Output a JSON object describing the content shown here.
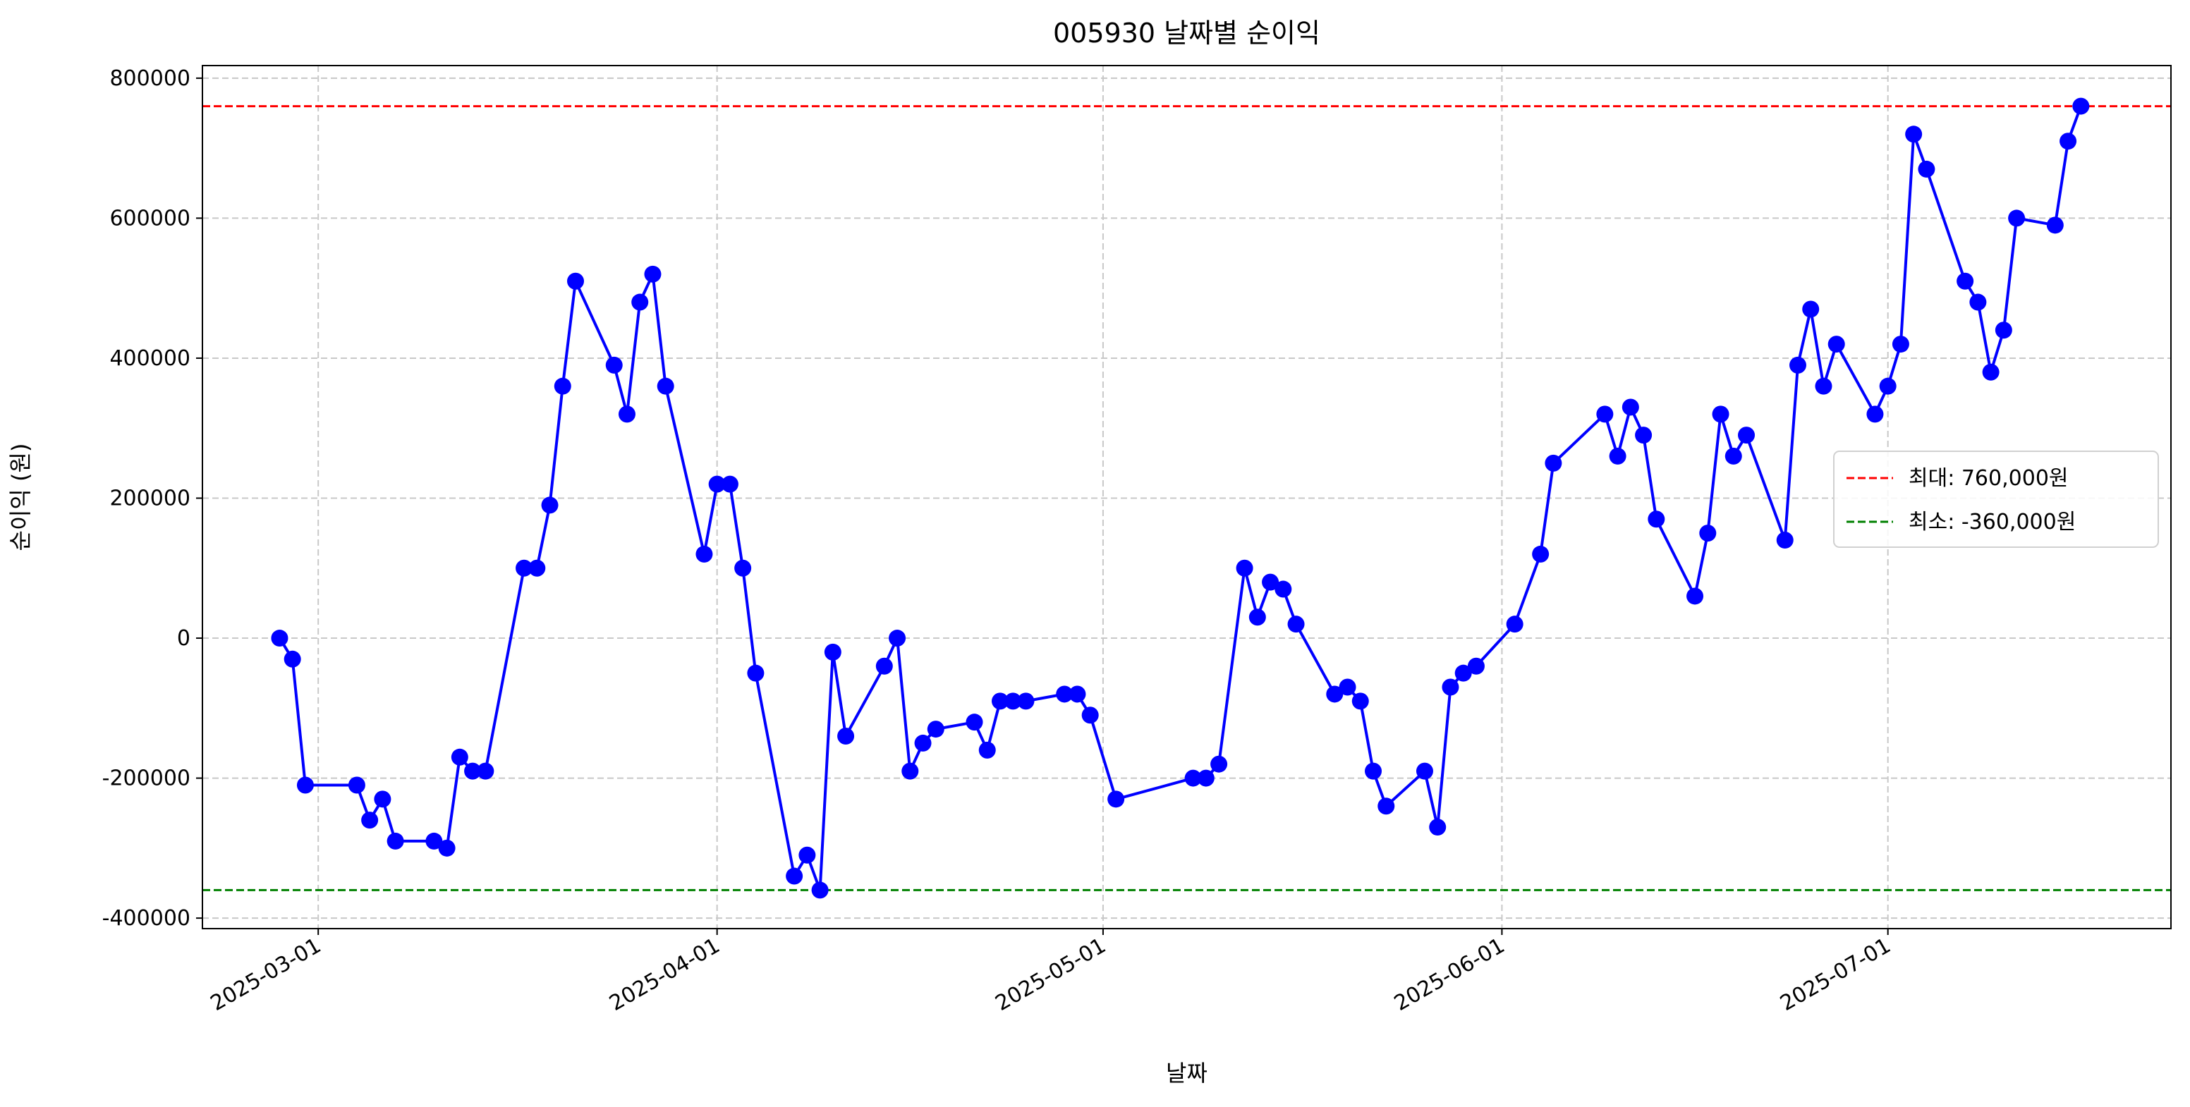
{
  "chart_data": {
    "type": "line",
    "title": "005930 날짜별 순이익",
    "xlabel": "날짜",
    "ylabel": "순이익 (원)",
    "x_ticks": [
      "2025-03-01",
      "2025-04-01",
      "2025-05-01",
      "2025-06-01",
      "2025-07-01"
    ],
    "y_ticks": [
      800000,
      600000,
      400000,
      200000,
      0,
      -200000,
      -400000
    ],
    "xlim": [
      "2025-02-20",
      "2025-07-23"
    ],
    "ylim": [
      -415000,
      818000
    ],
    "grid": true,
    "legend_position": "center-right",
    "colors": {
      "series": "#0000ff",
      "max_line": "#ff0000",
      "min_line": "#008000",
      "grid": "#c8c8c8"
    },
    "reference_lines": [
      {
        "name": "최대: 760,000원",
        "value": 760000,
        "color": "#ff0000",
        "style": "dashed"
      },
      {
        "name": "최소: -360,000원",
        "value": -360000,
        "color": "#008000",
        "style": "dashed"
      }
    ],
    "series": [
      {
        "color": "#0000ff",
        "marker": "circle",
        "points": [
          {
            "x": "2025-02-26",
            "y": 0
          },
          {
            "x": "2025-02-27",
            "y": -30000
          },
          {
            "x": "2025-02-28",
            "y": -210000
          },
          {
            "x": "2025-03-04",
            "y": -210000
          },
          {
            "x": "2025-03-05",
            "y": -260000
          },
          {
            "x": "2025-03-06",
            "y": -230000
          },
          {
            "x": "2025-03-07",
            "y": -290000
          },
          {
            "x": "2025-03-10",
            "y": -290000
          },
          {
            "x": "2025-03-11",
            "y": -300000
          },
          {
            "x": "2025-03-12",
            "y": -170000
          },
          {
            "x": "2025-03-13",
            "y": -190000
          },
          {
            "x": "2025-03-14",
            "y": -190000
          },
          {
            "x": "2025-03-17",
            "y": 100000
          },
          {
            "x": "2025-03-18",
            "y": 100000
          },
          {
            "x": "2025-03-19",
            "y": 190000
          },
          {
            "x": "2025-03-20",
            "y": 360000
          },
          {
            "x": "2025-03-21",
            "y": 510000
          },
          {
            "x": "2025-03-24",
            "y": 390000
          },
          {
            "x": "2025-03-25",
            "y": 320000
          },
          {
            "x": "2025-03-26",
            "y": 480000
          },
          {
            "x": "2025-03-27",
            "y": 520000
          },
          {
            "x": "2025-03-28",
            "y": 360000
          },
          {
            "x": "2025-03-31",
            "y": 120000
          },
          {
            "x": "2025-04-01",
            "y": 220000
          },
          {
            "x": "2025-04-02",
            "y": 220000
          },
          {
            "x": "2025-04-03",
            "y": 100000
          },
          {
            "x": "2025-04-04",
            "y": -50000
          },
          {
            "x": "2025-04-07",
            "y": -340000
          },
          {
            "x": "2025-04-08",
            "y": -310000
          },
          {
            "x": "2025-04-09",
            "y": -360000
          },
          {
            "x": "2025-04-10",
            "y": -20000
          },
          {
            "x": "2025-04-11",
            "y": -140000
          },
          {
            "x": "2025-04-14",
            "y": -40000
          },
          {
            "x": "2025-04-15",
            "y": 0
          },
          {
            "x": "2025-04-16",
            "y": -190000
          },
          {
            "x": "2025-04-17",
            "y": -150000
          },
          {
            "x": "2025-04-18",
            "y": -130000
          },
          {
            "x": "2025-04-21",
            "y": -120000
          },
          {
            "x": "2025-04-22",
            "y": -160000
          },
          {
            "x": "2025-04-23",
            "y": -90000
          },
          {
            "x": "2025-04-24",
            "y": -90000
          },
          {
            "x": "2025-04-25",
            "y": -90000
          },
          {
            "x": "2025-04-28",
            "y": -80000
          },
          {
            "x": "2025-04-29",
            "y": -80000
          },
          {
            "x": "2025-04-30",
            "y": -110000
          },
          {
            "x": "2025-05-02",
            "y": -230000
          },
          {
            "x": "2025-05-08",
            "y": -200000
          },
          {
            "x": "2025-05-09",
            "y": -200000
          },
          {
            "x": "2025-05-10",
            "y": -180000
          },
          {
            "x": "2025-05-12",
            "y": 100000
          },
          {
            "x": "2025-05-13",
            "y": 30000
          },
          {
            "x": "2025-05-14",
            "y": 80000
          },
          {
            "x": "2025-05-15",
            "y": 70000
          },
          {
            "x": "2025-05-16",
            "y": 20000
          },
          {
            "x": "2025-05-19",
            "y": -80000
          },
          {
            "x": "2025-05-20",
            "y": -70000
          },
          {
            "x": "2025-05-21",
            "y": -90000
          },
          {
            "x": "2025-05-22",
            "y": -190000
          },
          {
            "x": "2025-05-23",
            "y": -240000
          },
          {
            "x": "2025-05-26",
            "y": -190000
          },
          {
            "x": "2025-05-27",
            "y": -270000
          },
          {
            "x": "2025-05-28",
            "y": -70000
          },
          {
            "x": "2025-05-29",
            "y": -50000
          },
          {
            "x": "2025-05-30",
            "y": -40000
          },
          {
            "x": "2025-06-02",
            "y": 20000
          },
          {
            "x": "2025-06-04",
            "y": 120000
          },
          {
            "x": "2025-06-05",
            "y": 250000
          },
          {
            "x": "2025-06-09",
            "y": 320000
          },
          {
            "x": "2025-06-10",
            "y": 260000
          },
          {
            "x": "2025-06-11",
            "y": 330000
          },
          {
            "x": "2025-06-12",
            "y": 290000
          },
          {
            "x": "2025-06-13",
            "y": 170000
          },
          {
            "x": "2025-06-16",
            "y": 60000
          },
          {
            "x": "2025-06-17",
            "y": 150000
          },
          {
            "x": "2025-06-18",
            "y": 320000
          },
          {
            "x": "2025-06-19",
            "y": 260000
          },
          {
            "x": "2025-06-20",
            "y": 290000
          },
          {
            "x": "2025-06-23",
            "y": 140000
          },
          {
            "x": "2025-06-24",
            "y": 390000
          },
          {
            "x": "2025-06-25",
            "y": 470000
          },
          {
            "x": "2025-06-26",
            "y": 360000
          },
          {
            "x": "2025-06-27",
            "y": 420000
          },
          {
            "x": "2025-06-30",
            "y": 320000
          },
          {
            "x": "2025-07-01",
            "y": 360000
          },
          {
            "x": "2025-07-02",
            "y": 420000
          },
          {
            "x": "2025-07-03",
            "y": 720000
          },
          {
            "x": "2025-07-04",
            "y": 670000
          },
          {
            "x": "2025-07-07",
            "y": 510000
          },
          {
            "x": "2025-07-08",
            "y": 480000
          },
          {
            "x": "2025-07-09",
            "y": 380000
          },
          {
            "x": "2025-07-10",
            "y": 440000
          },
          {
            "x": "2025-07-11",
            "y": 600000
          },
          {
            "x": "2025-07-14",
            "y": 590000
          },
          {
            "x": "2025-07-15",
            "y": 710000
          },
          {
            "x": "2025-07-16",
            "y": 760000
          }
        ]
      }
    ]
  }
}
